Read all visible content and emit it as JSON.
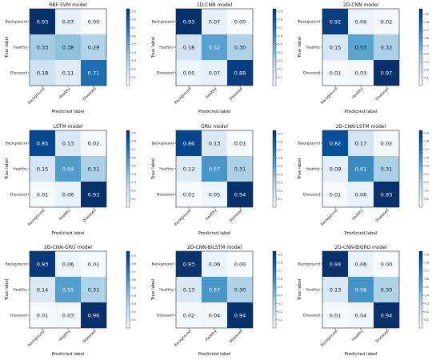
{
  "chart_data": [
    {
      "type": "heatmap",
      "title": "RBF-SVM model",
      "xlabel": "Predicted label",
      "ylabel": "True label",
      "categories": [
        "Background",
        "Healthy",
        "Diseased"
      ],
      "values": [
        [
          0.93,
          0.07,
          0.0
        ],
        [
          0.33,
          0.38,
          0.29
        ],
        [
          0.18,
          0.11,
          0.71
        ]
      ],
      "colorbar_ticks": [
        "0.1",
        "0.2",
        "0.3",
        "0.4",
        "0.5",
        "0.6",
        "0.7",
        "0.8",
        "0.9"
      ],
      "colorbar_range": [
        0,
        0.93
      ]
    },
    {
      "type": "heatmap",
      "title": "1D-CNN model",
      "xlabel": "Predicted label",
      "ylabel": "True label",
      "categories": [
        "Background",
        "Healthy",
        "Diseased"
      ],
      "values": [
        [
          0.93,
          0.07,
          0.0
        ],
        [
          0.18,
          0.52,
          0.3
        ],
        [
          0.05,
          0.07,
          0.88
        ]
      ],
      "colorbar_ticks": [
        "0.1",
        "0.2",
        "0.3",
        "0.4",
        "0.5",
        "0.6",
        "0.7",
        "0.8",
        "0.9"
      ],
      "colorbar_range": [
        0,
        0.93
      ]
    },
    {
      "type": "heatmap",
      "title": "2D-CNN model",
      "xlabel": "Predicted label",
      "ylabel": "True label",
      "categories": [
        "Background",
        "Healthy",
        "Diseased"
      ],
      "values": [
        [
          0.92,
          0.06,
          0.02
        ],
        [
          0.15,
          0.53,
          0.32
        ],
        [
          0.01,
          0.03,
          0.97
        ]
      ],
      "colorbar_ticks": [
        "0.1",
        "0.2",
        "0.3",
        "0.4",
        "0.5",
        "0.6",
        "0.7",
        "0.8",
        "0.9"
      ],
      "colorbar_range": [
        0,
        0.97
      ]
    },
    {
      "type": "heatmap",
      "title": "LSTM model",
      "xlabel": "Predicted label",
      "ylabel": "True label",
      "categories": [
        "Background",
        "Healthy",
        "Diseased"
      ],
      "values": [
        [
          0.85,
          0.13,
          0.02
        ],
        [
          0.15,
          0.54,
          0.31
        ],
        [
          0.01,
          0.06,
          0.93
        ]
      ],
      "colorbar_ticks": [
        "0.1",
        "0.2",
        "0.3",
        "0.4",
        "0.5",
        "0.6",
        "0.7",
        "0.8",
        "0.9"
      ],
      "colorbar_range": [
        0,
        0.93
      ]
    },
    {
      "type": "heatmap",
      "title": "GRU model",
      "xlabel": "Predicted label",
      "ylabel": "True label",
      "categories": [
        "Background",
        "Healthy",
        "Diseased"
      ],
      "values": [
        [
          0.86,
          0.13,
          0.01
        ],
        [
          0.12,
          0.57,
          0.31
        ],
        [
          0.01,
          0.05,
          0.94
        ]
      ],
      "colorbar_ticks": [
        "0.1",
        "0.2",
        "0.3",
        "0.4",
        "0.5",
        "0.6",
        "0.7",
        "0.8",
        "0.9"
      ],
      "colorbar_range": [
        0,
        0.94
      ]
    },
    {
      "type": "heatmap",
      "title": "2D-CNN-LSTM model",
      "xlabel": "Predicted label",
      "ylabel": "True label",
      "categories": [
        "Background",
        "Healthy",
        "Diseased"
      ],
      "values": [
        [
          0.82,
          0.17,
          0.02
        ],
        [
          0.09,
          0.61,
          0.31
        ],
        [
          0.01,
          0.06,
          0.93
        ]
      ],
      "colorbar_ticks": [
        "0.1",
        "0.2",
        "0.3",
        "0.4",
        "0.5",
        "0.6",
        "0.7",
        "0.8",
        "0.9"
      ],
      "colorbar_range": [
        0,
        0.93
      ]
    },
    {
      "type": "heatmap",
      "title": "2D-CNN-GRU model",
      "xlabel": "Predicted label",
      "ylabel": "True label",
      "categories": [
        "Background",
        "Healthy",
        "Diseased"
      ],
      "values": [
        [
          0.93,
          0.06,
          0.01
        ],
        [
          0.14,
          0.55,
          0.31
        ],
        [
          0.01,
          0.03,
          0.96
        ]
      ],
      "colorbar_ticks": [
        "0.1",
        "0.2",
        "0.3",
        "0.4",
        "0.5",
        "0.6",
        "0.7",
        "0.8",
        "0.9"
      ],
      "colorbar_range": [
        0,
        0.96
      ]
    },
    {
      "type": "heatmap",
      "title": "2D-CNN-BiLSTM model",
      "xlabel": "Predicted label",
      "ylabel": "True label",
      "categories": [
        "Background",
        "Healthy",
        "Diseased"
      ],
      "values": [
        [
          0.93,
          0.06,
          0.0
        ],
        [
          0.13,
          0.57,
          0.3
        ],
        [
          0.02,
          0.04,
          0.94
        ]
      ],
      "colorbar_ticks": [
        "0.1",
        "0.2",
        "0.3",
        "0.4",
        "0.5",
        "0.6",
        "0.7",
        "0.8",
        "0.9"
      ],
      "colorbar_range": [
        0,
        0.94
      ]
    },
    {
      "type": "heatmap",
      "title": "2D-CNN-BiGRU model",
      "xlabel": "Predicted label",
      "ylabel": "True label",
      "categories": [
        "Background",
        "Healthy",
        "Diseased"
      ],
      "values": [
        [
          0.94,
          0.06,
          0.0
        ],
        [
          0.13,
          0.58,
          0.3
        ],
        [
          0.01,
          0.04,
          0.94
        ]
      ],
      "colorbar_ticks": [
        "0.1",
        "0.2",
        "0.3",
        "0.4",
        "0.5",
        "0.6",
        "0.7",
        "0.8",
        "0.9"
      ],
      "colorbar_range": [
        0,
        0.94
      ]
    }
  ],
  "colors": {
    "low": "#f7fbff",
    "high": "#08306b"
  }
}
